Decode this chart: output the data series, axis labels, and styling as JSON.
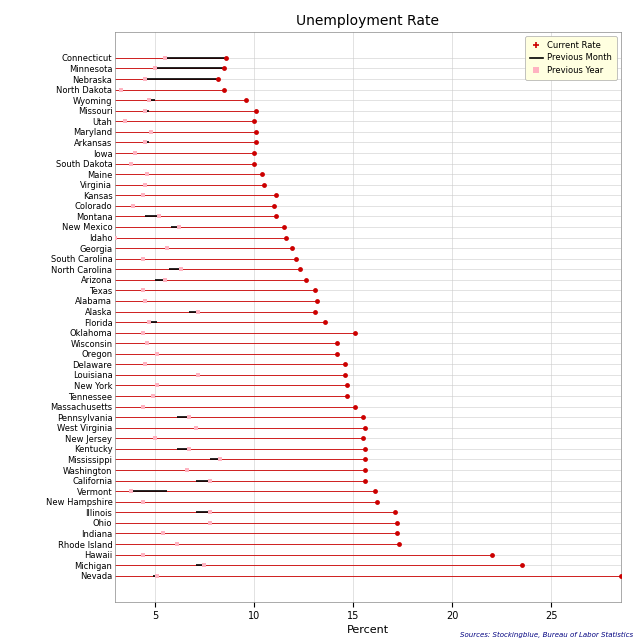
{
  "title": "Unemployment Rate",
  "xlabel": "Percent",
  "source": "Sources: Stockingblue, Bureau of Labor Statistics",
  "states": [
    "Connecticut",
    "Minnesota",
    "Nebraska",
    "North Dakota",
    "Wyoming",
    "Missouri",
    "Utah",
    "Maryland",
    "Arkansas",
    "Iowa",
    "South Dakota",
    "Maine",
    "Virginia",
    "Kansas",
    "Colorado",
    "Montana",
    "New Mexico",
    "Idaho",
    "Georgia",
    "South Carolina",
    "North Carolina",
    "Arizona",
    "Texas",
    "Alabama",
    "Alaska",
    "Florida",
    "Oklahoma",
    "Wisconsin",
    "Oregon",
    "Delaware",
    "Louisiana",
    "New York",
    "Tennessee",
    "Massachusetts",
    "Pennsylvania",
    "West Virginia",
    "New Jersey",
    "Kentucky",
    "Mississippi",
    "Washington",
    "California",
    "Vermont",
    "New Hampshire",
    "Illinois",
    "Ohio",
    "Indiana",
    "Rhode Island",
    "Hawaii",
    "Michigan",
    "Nevada"
  ],
  "current_rate": [
    8.6,
    8.5,
    8.2,
    8.5,
    9.6,
    10.1,
    10.0,
    10.1,
    10.1,
    10.0,
    10.0,
    10.4,
    10.5,
    11.1,
    11.0,
    11.1,
    11.5,
    11.6,
    11.9,
    12.1,
    12.3,
    12.6,
    13.1,
    13.2,
    13.1,
    13.6,
    15.1,
    14.2,
    14.2,
    14.6,
    14.6,
    14.7,
    14.7,
    15.1,
    15.5,
    15.6,
    15.5,
    15.6,
    15.6,
    15.6,
    15.6,
    16.1,
    16.2,
    17.1,
    17.2,
    17.2,
    17.3,
    22.0,
    23.5,
    28.5
  ],
  "previous_month": [
    8.6,
    8.5,
    8.2,
    3.3,
    5.0,
    4.7,
    3.5,
    4.8,
    4.7,
    3.9,
    3.8,
    4.6,
    4.5,
    4.4,
    3.9,
    4.5,
    5.8,
    3.0,
    5.6,
    4.4,
    5.7,
    5.0,
    4.4,
    4.5,
    6.7,
    5.1,
    4.4,
    4.6,
    5.1,
    4.5,
    7.2,
    5.1,
    4.9,
    4.4,
    6.1,
    7.1,
    5.0,
    6.1,
    7.8,
    6.6,
    7.1,
    5.6,
    4.4,
    7.1,
    7.8,
    5.4,
    6.1,
    4.4,
    7.1,
    4.9
  ],
  "previous_year": [
    5.5,
    5.0,
    4.5,
    3.3,
    4.7,
    4.5,
    3.5,
    4.8,
    4.5,
    4.0,
    3.8,
    4.6,
    4.5,
    4.4,
    3.9,
    5.2,
    6.2,
    3.0,
    5.6,
    4.4,
    6.3,
    5.5,
    4.4,
    4.5,
    7.2,
    4.7,
    4.4,
    4.6,
    5.1,
    4.5,
    7.2,
    5.1,
    4.9,
    4.4,
    6.7,
    7.1,
    5.0,
    6.7,
    8.3,
    6.6,
    7.8,
    3.8,
    4.4,
    7.8,
    7.8,
    5.4,
    6.1,
    4.4,
    7.5,
    5.1
  ],
  "current_color": "#cc0000",
  "line_color": "#cc0000",
  "prev_year_color": "#ffb3c1",
  "xlim_min": 3.0,
  "xlim_max": 28.5,
  "xticks": [
    5,
    10,
    15,
    20,
    25
  ],
  "background_color": "#ffffff",
  "grid_color": "#cccccc",
  "title_fontsize": 10,
  "label_fontsize": 6.0,
  "axis_label_fontsize": 8
}
